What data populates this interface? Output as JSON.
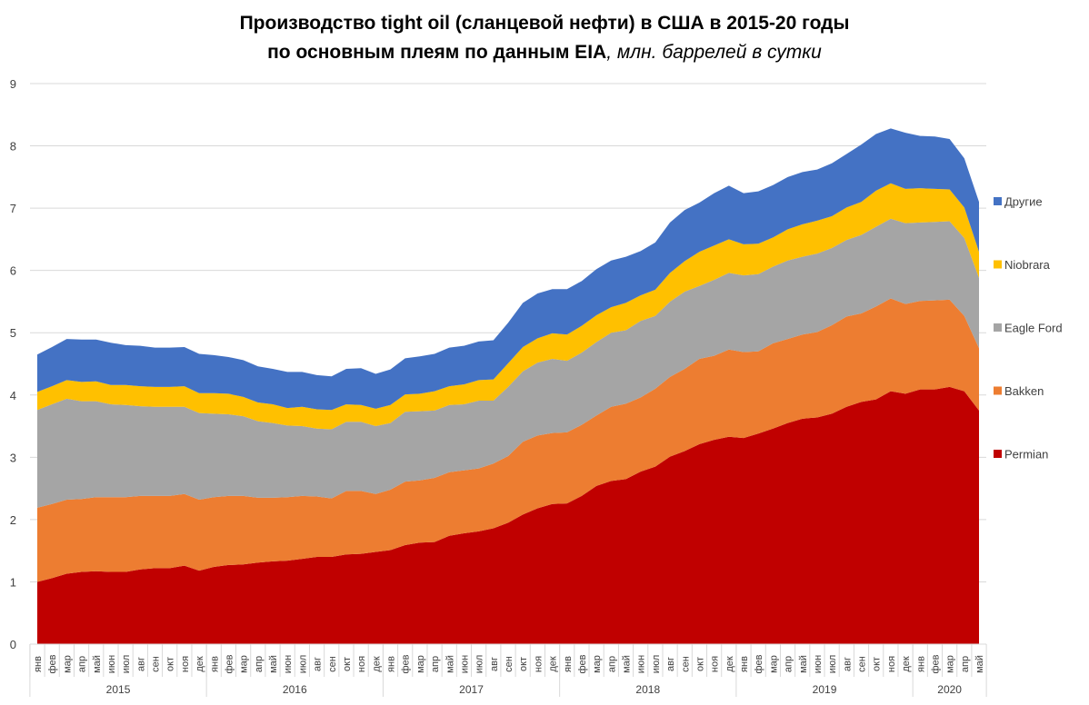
{
  "chart_data": {
    "type": "area",
    "stacked": true,
    "title": "Производство tight oil (сланцевой нефти) в США в 2015-20 годы",
    "subtitle_bold": "по основным плеям по данным EIA",
    "subtitle_italic": ", млн. баррелей в сутки",
    "xlabel": "",
    "ylabel": "",
    "ylim": [
      0,
      9
    ],
    "yticks": [
      "0",
      "1",
      "2",
      "3",
      "4",
      "5",
      "6",
      "7",
      "8",
      "9"
    ],
    "grid": true,
    "legend_position": "right",
    "month_labels": [
      "янв",
      "фев",
      "мар",
      "апр",
      "май",
      "июн",
      "июл",
      "авг",
      "сен",
      "окт",
      "ноя",
      "дек"
    ],
    "years": [
      {
        "label": "2015",
        "months": 12
      },
      {
        "label": "2016",
        "months": 12
      },
      {
        "label": "2017",
        "months": 12
      },
      {
        "label": "2018",
        "months": 12
      },
      {
        "label": "2019",
        "months": 12
      },
      {
        "label": "2020",
        "months": 5
      }
    ],
    "series": [
      {
        "name": "Permian",
        "color": "#C00000",
        "values": [
          1.0,
          1.06,
          1.13,
          1.16,
          1.17,
          1.16,
          1.16,
          1.2,
          1.22,
          1.22,
          1.26,
          1.18,
          1.24,
          1.27,
          1.28,
          1.31,
          1.33,
          1.34,
          1.37,
          1.4,
          1.4,
          1.44,
          1.45,
          1.48,
          1.51,
          1.59,
          1.63,
          1.64,
          1.74,
          1.78,
          1.81,
          1.86,
          1.95,
          2.08,
          2.18,
          2.25,
          2.26,
          2.38,
          2.54,
          2.62,
          2.65,
          2.77,
          2.85,
          3.01,
          3.1,
          3.21,
          3.28,
          3.33,
          3.31,
          3.38,
          3.46,
          3.55,
          3.62,
          3.64,
          3.7,
          3.81,
          3.89,
          3.93,
          4.06,
          4.02,
          4.09,
          4.09,
          4.13,
          4.06,
          3.75
        ]
      },
      {
        "name": "Bakken",
        "color": "#ED7D31",
        "values": [
          1.19,
          1.19,
          1.19,
          1.17,
          1.19,
          1.2,
          1.2,
          1.18,
          1.16,
          1.16,
          1.15,
          1.14,
          1.12,
          1.11,
          1.1,
          1.04,
          1.02,
          1.02,
          1.01,
          0.97,
          0.94,
          1.02,
          1.01,
          0.93,
          0.97,
          1.02,
          1.0,
          1.03,
          1.02,
          1.01,
          1.01,
          1.04,
          1.07,
          1.17,
          1.17,
          1.14,
          1.14,
          1.14,
          1.13,
          1.19,
          1.21,
          1.19,
          1.25,
          1.28,
          1.32,
          1.37,
          1.35,
          1.4,
          1.38,
          1.32,
          1.37,
          1.35,
          1.35,
          1.37,
          1.42,
          1.45,
          1.42,
          1.49,
          1.49,
          1.44,
          1.42,
          1.43,
          1.4,
          1.21,
          1.0
        ]
      },
      {
        "name": "Eagle Ford",
        "color": "#A5A5A5",
        "values": [
          1.57,
          1.6,
          1.62,
          1.57,
          1.54,
          1.49,
          1.48,
          1.44,
          1.43,
          1.43,
          1.4,
          1.39,
          1.34,
          1.31,
          1.28,
          1.23,
          1.2,
          1.15,
          1.12,
          1.09,
          1.11,
          1.11,
          1.11,
          1.09,
          1.07,
          1.12,
          1.11,
          1.08,
          1.08,
          1.06,
          1.09,
          1.01,
          1.11,
          1.13,
          1.17,
          1.19,
          1.15,
          1.16,
          1.18,
          1.19,
          1.18,
          1.23,
          1.17,
          1.21,
          1.24,
          1.17,
          1.22,
          1.23,
          1.23,
          1.24,
          1.23,
          1.26,
          1.25,
          1.26,
          1.24,
          1.23,
          1.26,
          1.28,
          1.28,
          1.3,
          1.26,
          1.26,
          1.26,
          1.25,
          1.13
        ]
      },
      {
        "name": "Niobrara",
        "color": "#FFC000",
        "values": [
          0.29,
          0.29,
          0.3,
          0.31,
          0.32,
          0.31,
          0.32,
          0.32,
          0.32,
          0.32,
          0.33,
          0.32,
          0.33,
          0.33,
          0.31,
          0.3,
          0.3,
          0.28,
          0.31,
          0.31,
          0.31,
          0.28,
          0.27,
          0.28,
          0.29,
          0.28,
          0.28,
          0.31,
          0.3,
          0.32,
          0.33,
          0.34,
          0.38,
          0.39,
          0.39,
          0.41,
          0.42,
          0.43,
          0.43,
          0.41,
          0.44,
          0.41,
          0.42,
          0.46,
          0.49,
          0.55,
          0.55,
          0.54,
          0.5,
          0.49,
          0.47,
          0.5,
          0.52,
          0.53,
          0.51,
          0.52,
          0.53,
          0.58,
          0.57,
          0.55,
          0.55,
          0.53,
          0.51,
          0.49,
          0.42
        ]
      },
      {
        "name": "Другие",
        "color": "#4472C4",
        "values": [
          0.6,
          0.63,
          0.66,
          0.68,
          0.67,
          0.68,
          0.64,
          0.65,
          0.63,
          0.63,
          0.63,
          0.63,
          0.61,
          0.59,
          0.59,
          0.58,
          0.57,
          0.58,
          0.56,
          0.55,
          0.54,
          0.57,
          0.59,
          0.56,
          0.57,
          0.58,
          0.6,
          0.6,
          0.62,
          0.62,
          0.62,
          0.63,
          0.65,
          0.71,
          0.72,
          0.71,
          0.73,
          0.72,
          0.74,
          0.75,
          0.74,
          0.71,
          0.76,
          0.81,
          0.82,
          0.79,
          0.84,
          0.86,
          0.82,
          0.84,
          0.84,
          0.84,
          0.84,
          0.82,
          0.85,
          0.86,
          0.92,
          0.91,
          0.88,
          0.9,
          0.84,
          0.84,
          0.81,
          0.79,
          0.8
        ]
      }
    ],
    "legend_order": [
      "Другие",
      "Niobrara",
      "Eagle Ford",
      "Bakken",
      "Permian"
    ]
  }
}
